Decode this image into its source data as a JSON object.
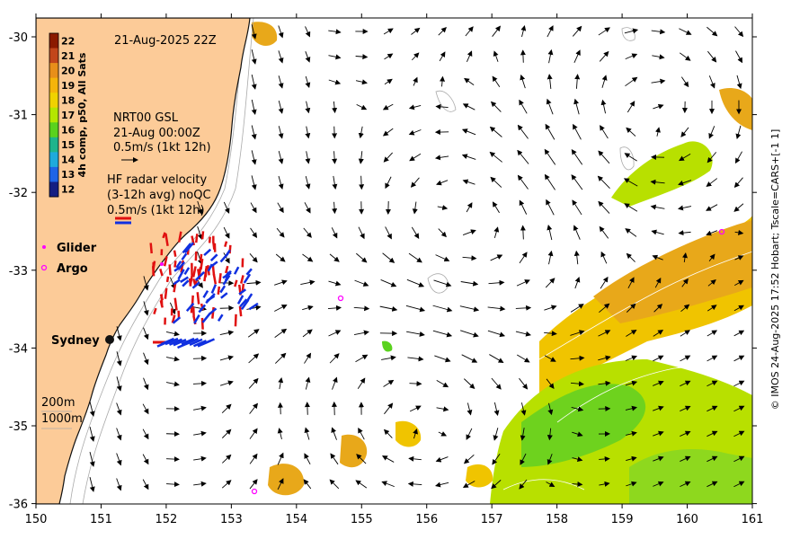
{
  "map": {
    "timestamp": "21-Aug-2025 22Z",
    "colorbar": {
      "label": "4h comp, p50, All Sats",
      "ticks": [
        "22",
        "21",
        "20",
        "19",
        "18",
        "17",
        "16",
        "15",
        "14",
        "13",
        "12"
      ],
      "colors": [
        "#8b1a00",
        "#c2461a",
        "#e88f1a",
        "#f5b40a",
        "#f0d200",
        "#b4e600",
        "#5ad21e",
        "#1eb48c",
        "#1eaadc",
        "#1e64e6",
        "#141e82"
      ]
    },
    "gsl_legend": {
      "line1": "NRT00 GSL",
      "line2": "21-Aug 00:00Z",
      "line3": "0.5m/s (1kt 12h)"
    },
    "hf_legend": {
      "line1": "HF radar velocity",
      "line2": "(3-12h avg) noQC",
      "line3": "0.5m/s (1kt 12h)"
    },
    "glider_label": "Glider",
    "argo_label": "Argo",
    "city_label": "Sydney",
    "contour_200": "200m",
    "contour_1000": "1000m",
    "credit": "© IMOS 24-Aug-2025 17:52 Hobart; Tscale=CARS+[-1 1]",
    "x_ticks": [
      "150",
      "151",
      "152",
      "153",
      "154",
      "155",
      "156",
      "157",
      "158",
      "159",
      "160",
      "161"
    ],
    "y_ticks": [
      "-30",
      "-31",
      "-32",
      "-33",
      "-34",
      "-35",
      "-36"
    ],
    "colors": {
      "land": "#fccb98",
      "coast": "#111111",
      "glider": "#ff00ff",
      "argo": "#ff00ff",
      "hf_red": "#e01010",
      "hf_blue": "#1030e0"
    }
  }
}
